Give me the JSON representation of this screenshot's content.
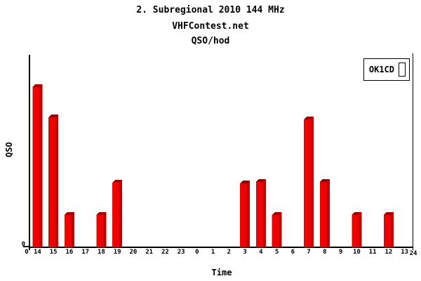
{
  "chart_data": {
    "type": "bar",
    "title": "2. Subregional 2010 144 MHz",
    "subtitle": "VHFContest.net",
    "subtitle2": "QSO/hod",
    "xlabel": "Time",
    "ylabel": "QSO",
    "categories": [
      "14",
      "15",
      "16",
      "17",
      "18",
      "19",
      "20",
      "21",
      "22",
      "23",
      "0",
      "1",
      "2",
      "3",
      "4",
      "5",
      "6",
      "7",
      "8",
      "9",
      "10",
      "11",
      "12",
      "13"
    ],
    "values": [
      232,
      189,
      50,
      0,
      50,
      96,
      0,
      0,
      0,
      0,
      0,
      0,
      0,
      95,
      97,
      50,
      0,
      186,
      97,
      0,
      50,
      0,
      50,
      0
    ],
    "values_unit": "pixel height (no numeric y scale shown on chart; only 0 labeled)",
    "ylim": [
      0,
      274
    ],
    "grid": false,
    "edge_labels": {
      "left": "0",
      "right": "24"
    },
    "y_zero_label": "0",
    "legend": {
      "entries": [
        "OK1CD"
      ],
      "position": "top-right"
    },
    "colors": {
      "bar_front": "#ee0000",
      "bar_side": "#bb0000",
      "bar_cap": "#990000",
      "axis": "#000000",
      "text": "#000000",
      "background": "#ffffff"
    }
  }
}
